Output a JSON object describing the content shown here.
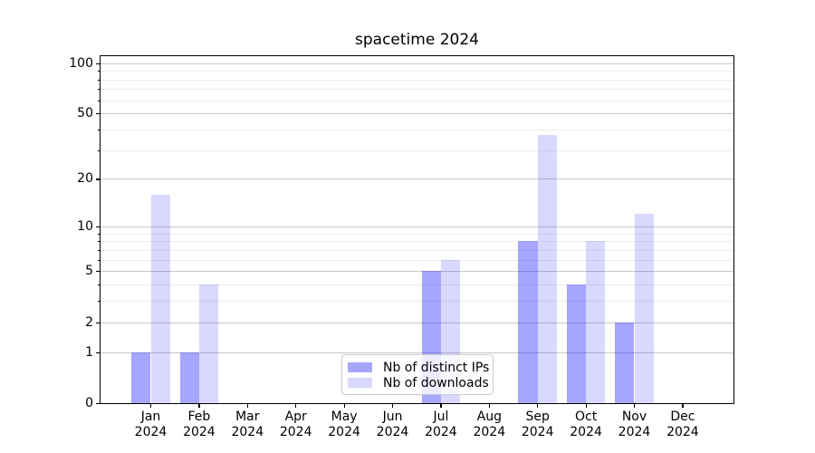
{
  "chart_data": {
    "type": "bar",
    "title": "spacetime 2024",
    "year_label": "2024",
    "months": [
      "Jan",
      "Feb",
      "Mar",
      "Apr",
      "May",
      "Jun",
      "Jul",
      "Aug",
      "Sep",
      "Oct",
      "Nov",
      "Dec"
    ],
    "series": [
      {
        "name": "Nb of distinct IPs",
        "color": "#0000ff",
        "alpha": 0.35,
        "values": [
          1,
          1,
          0,
          0,
          0,
          0,
          5,
          0,
          8,
          4,
          2,
          0
        ]
      },
      {
        "name": "Nb of downloads",
        "color": "#0000ff",
        "alpha": 0.15,
        "values": [
          16,
          4,
          0,
          0,
          0,
          0,
          6,
          0,
          37,
          8,
          12,
          0
        ]
      }
    ],
    "yscale": "log1p",
    "ylim": [
      0,
      110
    ],
    "yticks": [
      0,
      1,
      2,
      5,
      10,
      20,
      50,
      100
    ],
    "yticks_minor": [
      3,
      4,
      6,
      7,
      8,
      9,
      30,
      40,
      60,
      70,
      80,
      90
    ],
    "grid": "horizontal",
    "legend_position": "lower center"
  },
  "colors": {
    "grid_major": "#c8c8c8",
    "grid_minor": "#ececec",
    "axis": "#000000",
    "background": "#ffffff",
    "legend_border": "#cccccc"
  }
}
